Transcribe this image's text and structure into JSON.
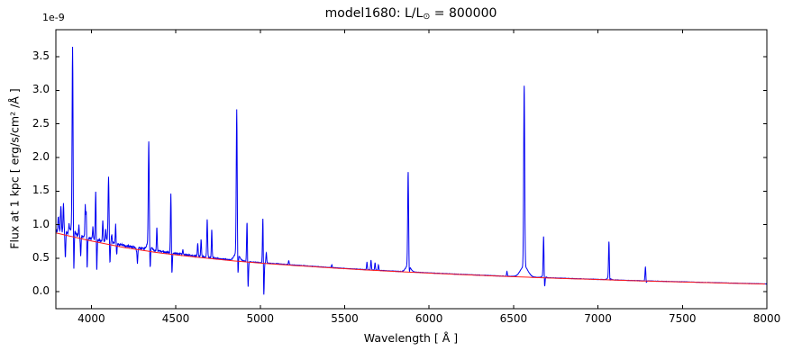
{
  "chart_data": {
    "type": "line",
    "title": "model1680: L/L⊙ = 800000",
    "title_parts": {
      "prefix": "model1680: L/L",
      "sun": "⊙",
      "suffix": " = 800000"
    },
    "offset_text": "1e-9",
    "xlabel": "Wavelength [ Å ]",
    "ylabel": "Flux at 1 kpc [ erg/s/cm² /Å ]",
    "xlim": [
      3790,
      8000
    ],
    "ylim": [
      -0.255,
      3.906
    ],
    "x_ticks": [
      4000,
      4500,
      5000,
      5500,
      6000,
      6500,
      7000,
      7500,
      8000
    ],
    "y_ticks": [
      0.0,
      0.5,
      1.0,
      1.5,
      2.0,
      2.5,
      3.0,
      3.5
    ],
    "grid": false,
    "legend": null,
    "units_factor": 1e-09,
    "series": [
      {
        "name": "model-spectrum",
        "color": "#0000f2",
        "role": "spectrum"
      },
      {
        "name": "continuum",
        "color": "#ff1a1a",
        "role": "continuum"
      }
    ],
    "continuum_anchors": [
      [
        3790,
        0.875
      ],
      [
        4000,
        0.755
      ],
      [
        4200,
        0.655
      ],
      [
        4400,
        0.578
      ],
      [
        4600,
        0.52
      ],
      [
        4800,
        0.468
      ],
      [
        5000,
        0.425
      ],
      [
        5200,
        0.39
      ],
      [
        5400,
        0.357
      ],
      [
        5600,
        0.327
      ],
      [
        5800,
        0.3
      ],
      [
        6000,
        0.276
      ],
      [
        6200,
        0.253
      ],
      [
        6400,
        0.232
      ],
      [
        6600,
        0.213
      ],
      [
        6800,
        0.196
      ],
      [
        7000,
        0.18
      ],
      [
        7200,
        0.163
      ],
      [
        7400,
        0.15
      ],
      [
        7600,
        0.137
      ],
      [
        7800,
        0.124
      ],
      [
        8000,
        0.112
      ]
    ],
    "spectrum_excess_anchors": [
      [
        3790,
        0.04
      ],
      [
        4100,
        0.032
      ],
      [
        4400,
        0.024
      ],
      [
        4700,
        0.014
      ],
      [
        5000,
        0.007
      ],
      [
        5400,
        0.004
      ],
      [
        6000,
        0.003
      ],
      [
        8000,
        0.002
      ]
    ],
    "noise_amp_anchors": [
      [
        3790,
        0.028
      ],
      [
        4000,
        0.02
      ],
      [
        4300,
        0.014
      ],
      [
        4700,
        0.009
      ],
      [
        5000,
        0.005
      ],
      [
        5400,
        0.0035
      ],
      [
        5800,
        0.0035
      ],
      [
        6500,
        0.003
      ],
      [
        8000,
        0.0025
      ]
    ],
    "broad_wings": [
      [
        3889,
        0.1,
        12
      ],
      [
        4102,
        0.06,
        10
      ],
      [
        4340,
        0.1,
        12
      ],
      [
        4861,
        0.12,
        14
      ],
      [
        5876,
        0.1,
        14
      ],
      [
        6563,
        0.16,
        22
      ],
      [
        6678,
        0.03,
        10
      ],
      [
        7065,
        0.03,
        10
      ]
    ],
    "emission_lines": [
      [
        3805,
        1.12,
        2.5
      ],
      [
        3820,
        1.27,
        2.5
      ],
      [
        3835,
        1.3,
        2.5
      ],
      [
        3868,
        1.0,
        2.2
      ],
      [
        3889,
        3.58,
        2.8
      ],
      [
        3926,
        0.98,
        2.2
      ],
      [
        3964,
        1.28,
        2.2
      ],
      [
        3970,
        1.2,
        2.2
      ],
      [
        4009,
        0.96,
        2.2
      ],
      [
        4026,
        1.49,
        2.5
      ],
      [
        4068,
        1.06,
        2.2
      ],
      [
        4085,
        0.92,
        2.2
      ],
      [
        4102,
        1.64,
        2.8
      ],
      [
        4121,
        0.85,
        2.2
      ],
      [
        4144,
        1.0,
        2.2
      ],
      [
        4200,
        0.68,
        2.2
      ],
      [
        4267,
        0.62,
        2.2
      ],
      [
        4340,
        2.13,
        2.8
      ],
      [
        4388,
        0.95,
        2.2
      ],
      [
        4471,
        1.48,
        2.5
      ],
      [
        4542,
        0.62,
        2.2
      ],
      [
        4630,
        0.72,
        2.2
      ],
      [
        4650,
        0.78,
        2.2
      ],
      [
        4686,
        1.07,
        2.5
      ],
      [
        4713,
        0.92,
        2.2
      ],
      [
        4861,
        2.6,
        2.8
      ],
      [
        4922,
        1.05,
        2.5
      ],
      [
        5016,
        1.15,
        2.5
      ],
      [
        5036,
        0.58,
        2.2
      ],
      [
        5169,
        0.46,
        2.2
      ],
      [
        5424,
        0.4,
        2.2
      ],
      [
        5632,
        0.44,
        2.2
      ],
      [
        5656,
        0.47,
        2.2
      ],
      [
        5680,
        0.43,
        2.2
      ],
      [
        5700,
        0.4,
        2.2
      ],
      [
        5876,
        1.69,
        2.8
      ],
      [
        6461,
        0.3,
        2.2
      ],
      [
        6563,
        2.91,
        3.0
      ],
      [
        6678,
        0.8,
        2.5
      ],
      [
        7065,
        0.72,
        2.5
      ],
      [
        7281,
        0.37,
        2.5
      ]
    ],
    "absorption_lines": [
      [
        3846,
        0.5,
        2.2
      ],
      [
        3896,
        0.17,
        2.5
      ],
      [
        3937,
        0.55,
        2.2
      ],
      [
        3975,
        0.35,
        2.2
      ],
      [
        4032,
        0.3,
        2.2
      ],
      [
        4110,
        0.38,
        2.5
      ],
      [
        4150,
        0.55,
        2.2
      ],
      [
        4273,
        0.42,
        2.2
      ],
      [
        4348,
        0.27,
        2.5
      ],
      [
        4477,
        0.23,
        2.5
      ],
      [
        4868,
        0.12,
        2.5
      ],
      [
        4928,
        0.05,
        2.5
      ],
      [
        5021,
        -0.12,
        2.5
      ],
      [
        5882,
        0.15,
        2.5
      ],
      [
        6684,
        0.03,
        2.5
      ],
      [
        7070,
        0.11,
        2.2
      ],
      [
        7286,
        0.12,
        2.2
      ]
    ]
  }
}
